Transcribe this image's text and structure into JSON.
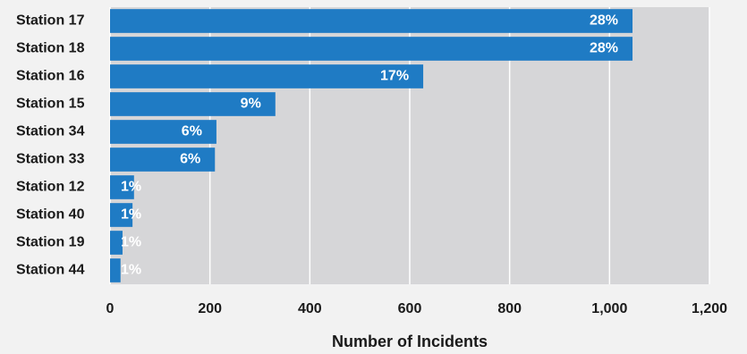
{
  "chart_data": {
    "type": "bar",
    "orientation": "horizontal",
    "x_label": "Number of Incidents",
    "categories": [
      "Station 17",
      "Station 18",
      "Station 16",
      "Station 15",
      "Station 34",
      "Station 33",
      "Station 12",
      "Station 40",
      "Station 19",
      "Station 44"
    ],
    "values": [
      1046,
      1046,
      627,
      331,
      213,
      210,
      48,
      45,
      25,
      21
    ],
    "share_labels": [
      "28%",
      "28%",
      "17%",
      "9%",
      "6%",
      "6%",
      "1%",
      "1%",
      "1%",
      "1%"
    ],
    "color": "#1f7bc4",
    "xlim": [
      0,
      1200
    ],
    "xticks": [
      0,
      200,
      400,
      600,
      800,
      {
        "value": 1000,
        "label": "1,000"
      },
      {
        "value": 1200,
        "label": "1,200"
      }
    ],
    "grid": true
  }
}
